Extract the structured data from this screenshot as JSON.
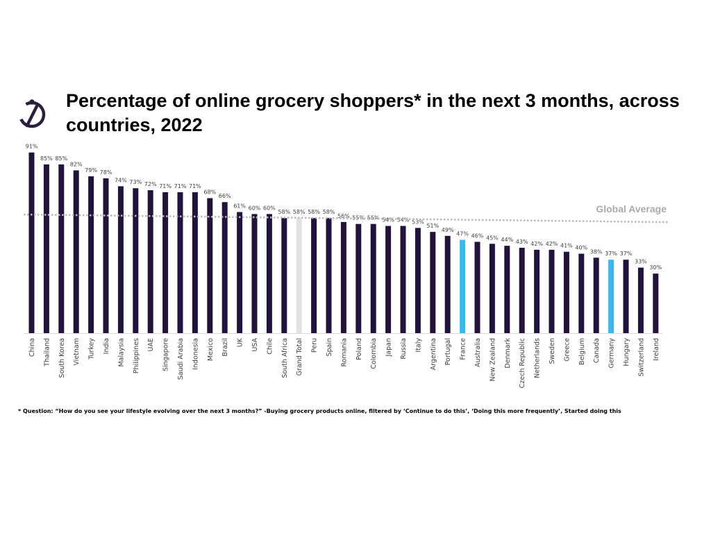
{
  "brand": {
    "logo_icon": "stylized-i-in-circle-icon",
    "logo_color": "#2a1f3d"
  },
  "colors": {
    "bar": "#22133a",
    "grand_total": "#e2e2e2",
    "highlight": "#3bb8ea",
    "average_line": "#b9b9b9",
    "average_label": "#aaaaaa",
    "axis": "#d9d9d9",
    "label": "#404040"
  },
  "footnote": "* Question: “How do you see your lifestyle evolving over the next 3 months?”  -Buying grocery products online, filtered by ‘Continue to do this’, ‘Doing this more frequently’, Started doing this",
  "chart_data": {
    "type": "bar",
    "title": "Percentage of online grocery shoppers* in the next 3 months, across countries, 2022",
    "xlabel": "",
    "ylabel": "",
    "ylim": [
      0,
      100
    ],
    "grid": false,
    "legend": "none",
    "categories": [
      "China",
      "Thailand",
      "South Korea",
      "Vietnam",
      "Turkey",
      "India",
      "Malaysia",
      "Philippines",
      "UAE",
      "Singapore",
      "Saudi Arabia",
      "Indonesia",
      "Mexico",
      "Brazil",
      "UK",
      "USA",
      "Chile",
      "South Africa",
      "Grand Total",
      "Peru",
      "Spain",
      "Romania",
      "Poland",
      "Colombia",
      "Japan",
      "Russia",
      "Italy",
      "Argentina",
      "Portugal",
      "France",
      "Australia",
      "New Zealand",
      "Denmark",
      "Czech Republic",
      "Netherlands",
      "Sweden",
      "Greece",
      "Belgium",
      "Canada",
      "Germany",
      "Hungary",
      "Switzerland",
      "Ireland"
    ],
    "values": [
      91,
      85,
      85,
      82,
      79,
      78,
      74,
      73,
      72,
      71,
      71,
      71,
      68,
      66,
      61,
      60,
      60,
      58,
      58,
      58,
      58,
      56,
      55,
      55,
      54,
      54,
      53,
      51,
      49,
      47,
      46,
      45,
      44,
      43,
      42,
      42,
      41,
      40,
      38,
      37,
      37,
      33,
      30
    ],
    "value_labels": [
      "91%",
      "85%",
      "85%",
      "82%",
      "79%",
      "78%",
      "74%",
      "73%",
      "72%",
      "71%",
      "71%",
      "71%",
      "68%",
      "66%",
      "61%",
      "60%",
      "60%",
      "58%",
      "58%",
      "58%",
      "58%",
      "56%",
      "55%",
      "55%",
      "54%",
      "54%",
      "53%",
      "51%",
      "49%",
      "47%",
      "46%",
      "45%",
      "44%",
      "43%",
      "42%",
      "42%",
      "41%",
      "40%",
      "38%",
      "37%",
      "37%",
      "33%",
      "30%"
    ],
    "highlighted": [
      "France",
      "Germany"
    ],
    "grand_total_category": "Grand Total",
    "average_line": {
      "label": "Global Average",
      "value": 58
    }
  }
}
